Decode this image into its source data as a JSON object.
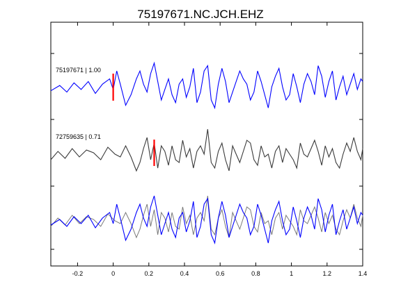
{
  "chart_data": {
    "type": "line",
    "title": "75197671.NC.JCH.EHZ",
    "xlabel": "",
    "ylabel": "",
    "xlim": [
      -0.35,
      1.4
    ],
    "x_ticks": [
      -0.2,
      0,
      0.2,
      0.4,
      0.6,
      0.8,
      1,
      1.2,
      1.4
    ],
    "x_tick_labels": [
      "-0.2",
      "0",
      "0.2",
      "0.4",
      "0.6",
      "0.8",
      "1",
      "1.2",
      "1.4"
    ],
    "grid": false,
    "colors": {
      "template": "#0000ff",
      "match": "#3a3a3a",
      "overlay": "#7a7a7a",
      "pick": "#ff0000"
    },
    "traces": [
      {
        "label": "75197671 | 1.00",
        "color": "#0000ff",
        "pick_time": 0.0,
        "x": [
          -0.35,
          -0.3,
          -0.26,
          -0.22,
          -0.18,
          -0.14,
          -0.1,
          -0.06,
          -0.02,
          0.0,
          0.02,
          0.04,
          0.07,
          0.1,
          0.13,
          0.15,
          0.17,
          0.19,
          0.21,
          0.23,
          0.25,
          0.27,
          0.29,
          0.31,
          0.33,
          0.35,
          0.37,
          0.39,
          0.41,
          0.43,
          0.45,
          0.47,
          0.49,
          0.51,
          0.53,
          0.55,
          0.57,
          0.59,
          0.61,
          0.63,
          0.65,
          0.67,
          0.69,
          0.71,
          0.73,
          0.75,
          0.77,
          0.79,
          0.81,
          0.83,
          0.85,
          0.87,
          0.89,
          0.91,
          0.93,
          0.95,
          0.97,
          0.99,
          1.01,
          1.03,
          1.05,
          1.07,
          1.09,
          1.11,
          1.13,
          1.15,
          1.17,
          1.19,
          1.21,
          1.23,
          1.25,
          1.27,
          1.29,
          1.31,
          1.33,
          1.35,
          1.37,
          1.39,
          1.4
        ],
        "y": [
          -0.15,
          0.05,
          -0.2,
          0.15,
          -0.1,
          0.2,
          -0.25,
          0.1,
          0.3,
          -0.1,
          0.6,
          0.1,
          -0.7,
          -0.3,
          0.3,
          0.6,
          0.1,
          -0.2,
          0.5,
          0.9,
          0.2,
          -0.5,
          -0.1,
          0.3,
          -0.3,
          -0.6,
          0.1,
          0.3,
          -0.4,
          0.0,
          0.7,
          -0.6,
          -0.2,
          0.6,
          0.8,
          -0.5,
          -0.8,
          0.1,
          0.7,
          0.2,
          -0.6,
          -0.2,
          0.2,
          0.6,
          0.3,
          0.1,
          -0.5,
          -0.2,
          0.6,
          0.2,
          -0.3,
          -0.8,
          0.0,
          0.4,
          0.7,
          0.0,
          -0.5,
          -0.3,
          0.5,
          0.0,
          -0.6,
          0.1,
          0.5,
          0.2,
          -0.3,
          0.8,
          0.4,
          -0.4,
          0.2,
          0.6,
          -0.5,
          0.0,
          0.4,
          -0.3,
          0.1,
          0.5,
          -0.1,
          0.3,
          0.2
        ]
      },
      {
        "label": "72759635 | 0.71",
        "color": "#3a3a3a",
        "pick_time": 0.23,
        "x": [
          -0.35,
          -0.31,
          -0.27,
          -0.23,
          -0.19,
          -0.15,
          -0.11,
          -0.07,
          -0.03,
          0.01,
          0.04,
          0.07,
          0.1,
          0.13,
          0.15,
          0.17,
          0.19,
          0.21,
          0.23,
          0.25,
          0.27,
          0.29,
          0.31,
          0.33,
          0.35,
          0.37,
          0.39,
          0.41,
          0.43,
          0.45,
          0.47,
          0.49,
          0.51,
          0.53,
          0.55,
          0.57,
          0.59,
          0.61,
          0.63,
          0.65,
          0.67,
          0.69,
          0.71,
          0.73,
          0.75,
          0.77,
          0.79,
          0.81,
          0.83,
          0.85,
          0.87,
          0.89,
          0.91,
          0.93,
          0.95,
          0.97,
          0.99,
          1.01,
          1.03,
          1.05,
          1.07,
          1.09,
          1.11,
          1.13,
          1.15,
          1.17,
          1.19,
          1.21,
          1.23,
          1.25,
          1.27,
          1.29,
          1.31,
          1.33,
          1.35,
          1.37,
          1.39,
          1.4
        ],
        "y": [
          -0.2,
          0.1,
          -0.15,
          0.2,
          -0.1,
          0.15,
          0.05,
          -0.2,
          0.25,
          0.0,
          -0.1,
          0.3,
          -0.1,
          -0.6,
          -0.3,
          0.2,
          0.6,
          -0.2,
          0.4,
          -0.5,
          0.3,
          0.1,
          -0.4,
          0.3,
          -0.2,
          -0.3,
          0.5,
          -0.1,
          0.2,
          -0.5,
          0.1,
          0.3,
          0.0,
          0.9,
          -0.3,
          -0.5,
          0.1,
          0.4,
          -0.2,
          -0.6,
          0.3,
          0.0,
          -0.3,
          0.1,
          0.5,
          0.4,
          -0.2,
          -0.4,
          0.3,
          -0.1,
          0.0,
          -0.5,
          0.1,
          0.3,
          -0.3,
          0.2,
          0.0,
          -0.2,
          -0.5,
          0.4,
          0.0,
          -0.1,
          0.2,
          0.5,
          0.1,
          -0.4,
          0.3,
          -0.1,
          0.2,
          -0.3,
          -0.5,
          0.0,
          0.4,
          0.1,
          0.6,
          0.1,
          -0.2,
          0.2
        ]
      }
    ],
    "overlay": {
      "description_free": true,
      "series": [
        "template",
        "match"
      ]
    }
  }
}
